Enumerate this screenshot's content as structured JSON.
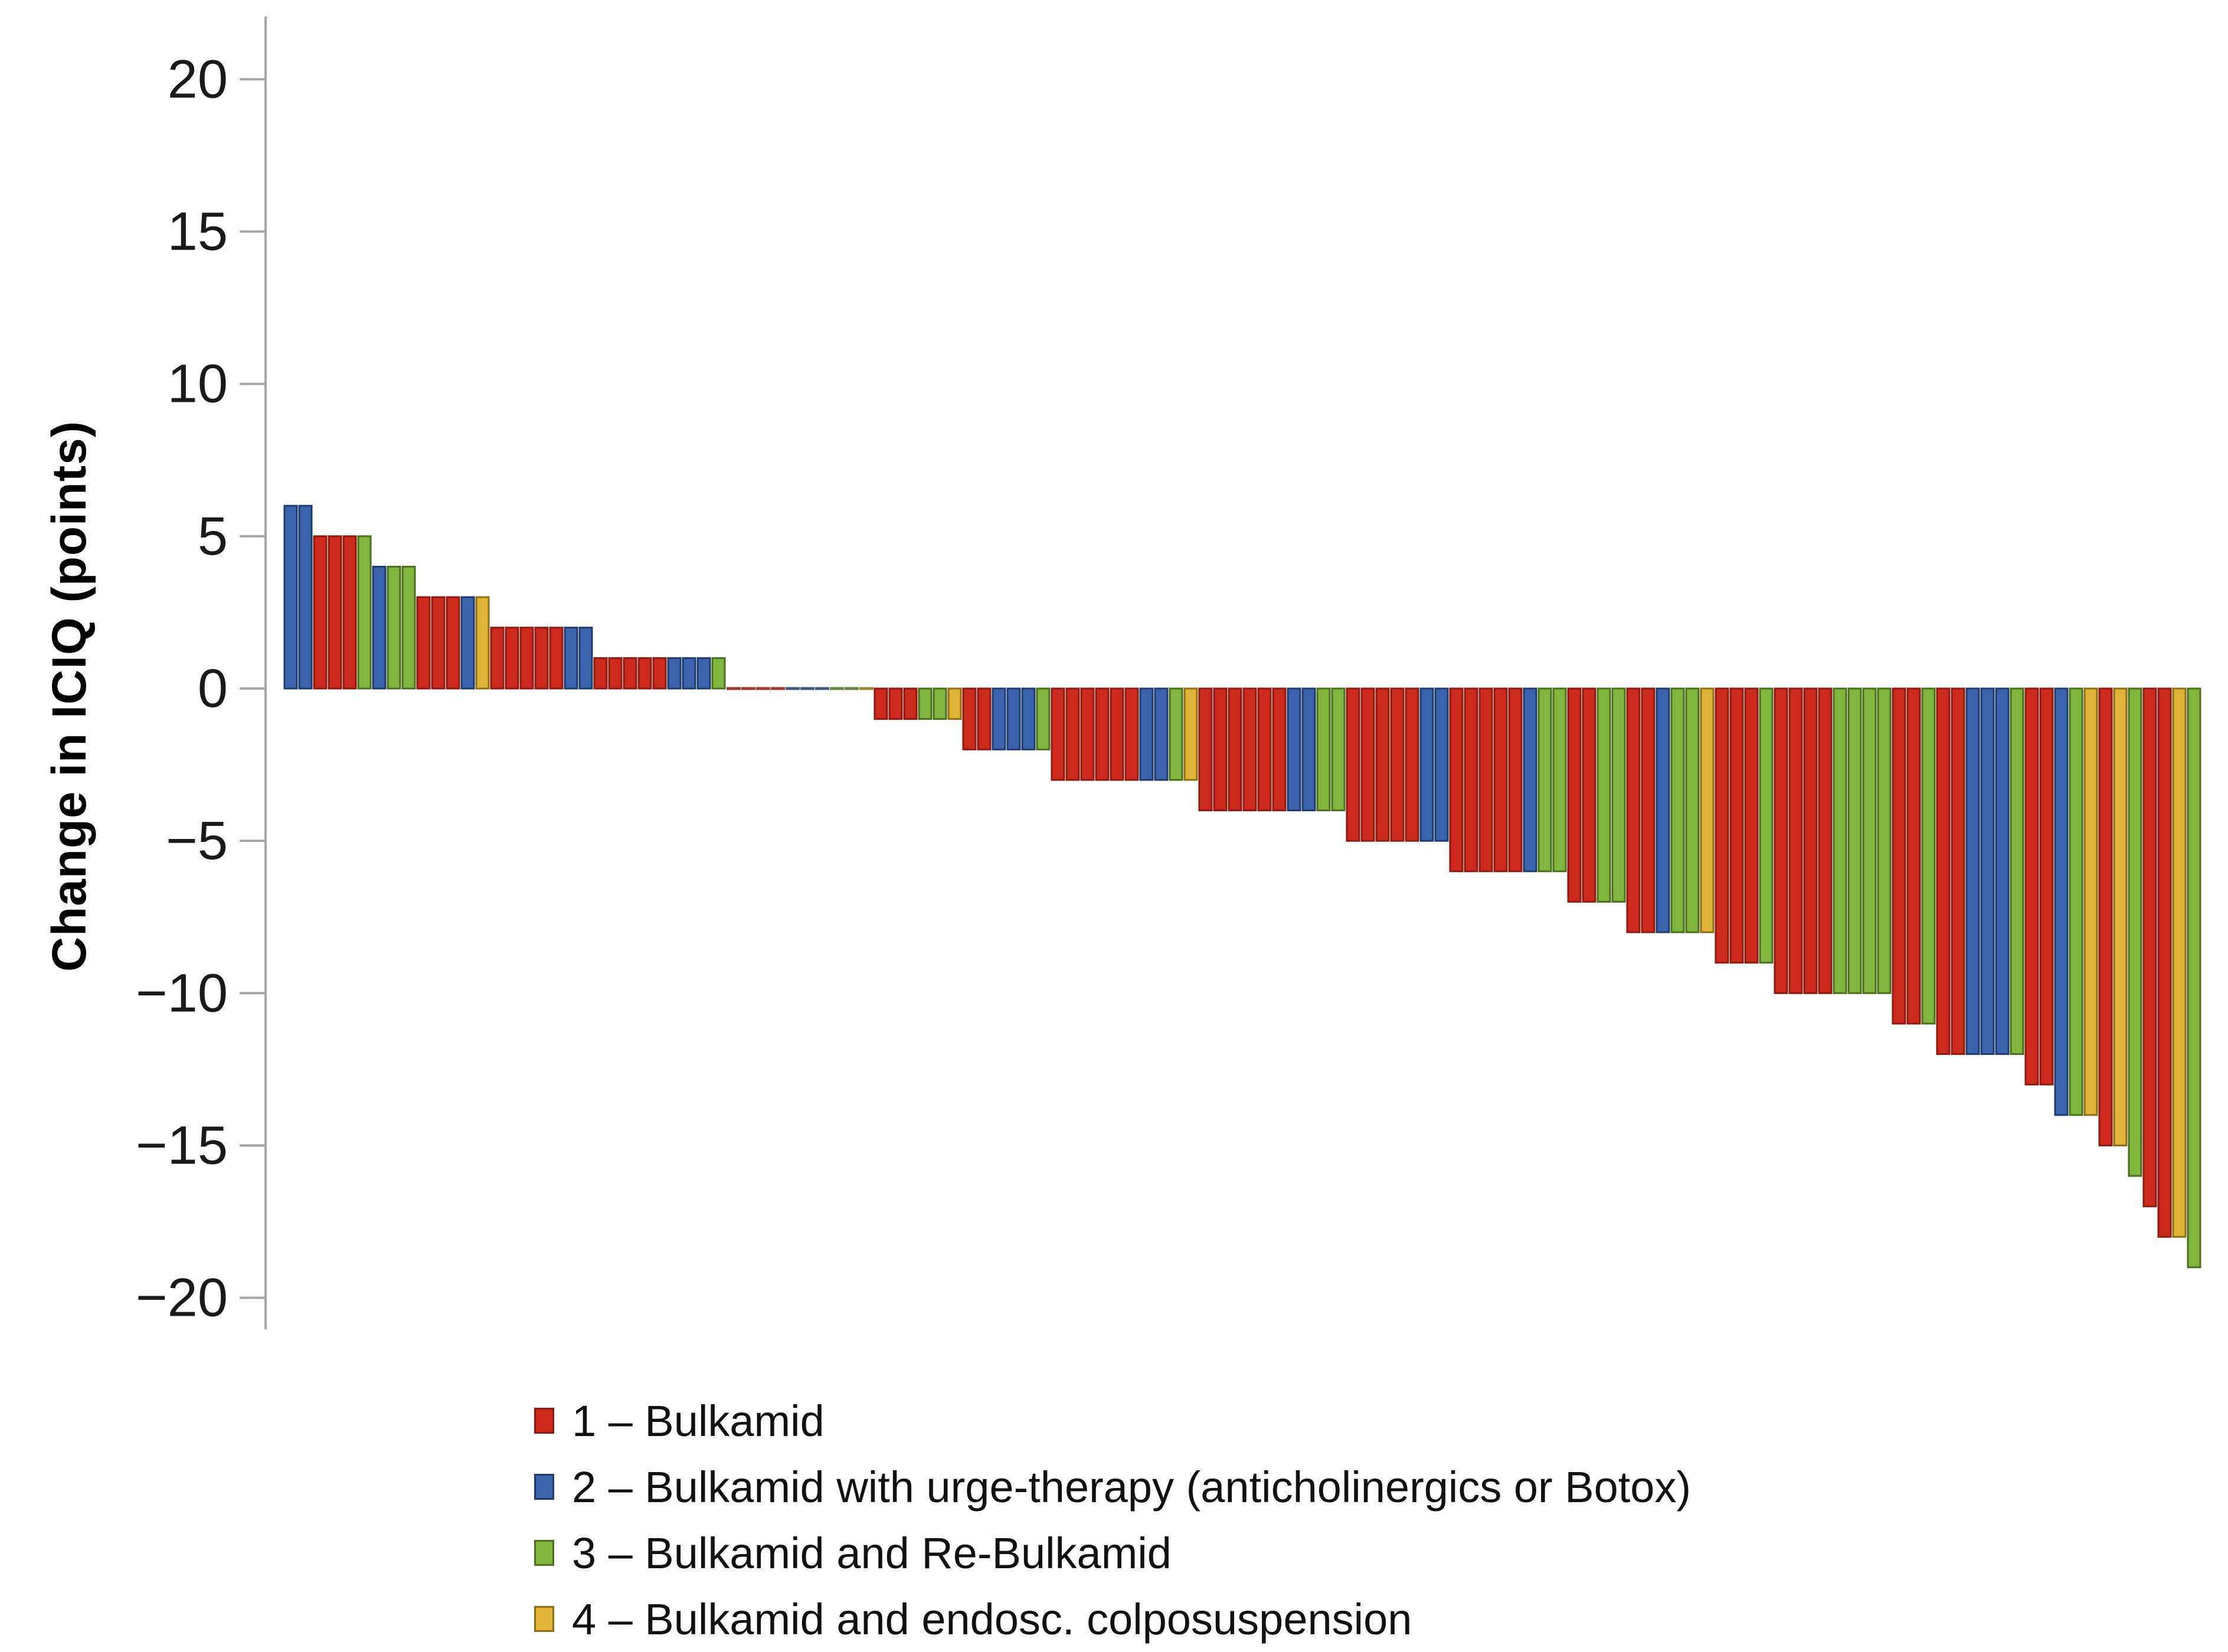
{
  "chart_data": {
    "type": "bar",
    "subtype": "waterfall-per-patient",
    "title": "",
    "xlabel": "",
    "ylabel": "Change in ICIQ (points)",
    "ylim": [
      -21.5,
      22
    ],
    "grid": false,
    "legend_position": "bottom-left",
    "axis_color": "#a6a6a6",
    "y_ticks": [
      {
        "v": 20,
        "label": "20"
      },
      {
        "v": 15,
        "label": "15"
      },
      {
        "v": 10,
        "label": "10"
      },
      {
        "v": 5,
        "label": "5"
      },
      {
        "v": 0,
        "label": "0"
      },
      {
        "v": -5,
        "label": "−5"
      },
      {
        "v": -10,
        "label": "−10"
      },
      {
        "v": -15,
        "label": "−15"
      },
      {
        "v": -20,
        "label": "−20"
      }
    ],
    "groups": [
      {
        "id": 1,
        "label": "1 – Bulkamid",
        "color": "#cb2a1d",
        "border": "#8e1b12"
      },
      {
        "id": 2,
        "label": "2 – Bulkamid with urge-therapy (anticholinergics or Botox)",
        "color": "#3c64ae",
        "border": "#1f3b6c"
      },
      {
        "id": 3,
        "label": "3 – Bulkamid and Re-Bulkamid",
        "color": "#80b63e",
        "border": "#4c6e1f"
      },
      {
        "id": 4,
        "label": "4 – Bulkamid and endosc. colposuspension",
        "color": "#dfb335",
        "border": "#8c6e14"
      }
    ],
    "bars": [
      [
        2,
        6
      ],
      [
        2,
        6
      ],
      [
        1,
        5
      ],
      [
        1,
        5
      ],
      [
        1,
        5
      ],
      [
        3,
        5
      ],
      [
        2,
        4
      ],
      [
        3,
        4
      ],
      [
        3,
        4
      ],
      [
        1,
        3
      ],
      [
        1,
        3
      ],
      [
        1,
        3
      ],
      [
        2,
        3
      ],
      [
        4,
        3
      ],
      [
        1,
        2
      ],
      [
        1,
        2
      ],
      [
        1,
        2
      ],
      [
        1,
        2
      ],
      [
        1,
        2
      ],
      [
        2,
        2
      ],
      [
        2,
        2
      ],
      [
        1,
        1
      ],
      [
        1,
        1
      ],
      [
        1,
        1
      ],
      [
        1,
        1
      ],
      [
        1,
        1
      ],
      [
        2,
        1
      ],
      [
        2,
        1
      ],
      [
        2,
        1
      ],
      [
        3,
        1
      ],
      [
        1,
        0
      ],
      [
        1,
        0
      ],
      [
        1,
        0
      ],
      [
        1,
        0
      ],
      [
        2,
        0
      ],
      [
        2,
        0
      ],
      [
        2,
        0
      ],
      [
        3,
        0
      ],
      [
        3,
        0
      ],
      [
        4,
        0
      ],
      [
        1,
        -1
      ],
      [
        1,
        -1
      ],
      [
        1,
        -1
      ],
      [
        3,
        -1
      ],
      [
        3,
        -1
      ],
      [
        4,
        -1
      ],
      [
        1,
        -2
      ],
      [
        1,
        -2
      ],
      [
        2,
        -2
      ],
      [
        2,
        -2
      ],
      [
        2,
        -2
      ],
      [
        3,
        -2
      ],
      [
        1,
        -3
      ],
      [
        1,
        -3
      ],
      [
        1,
        -3
      ],
      [
        1,
        -3
      ],
      [
        1,
        -3
      ],
      [
        1,
        -3
      ],
      [
        2,
        -3
      ],
      [
        2,
        -3
      ],
      [
        3,
        -3
      ],
      [
        4,
        -3
      ],
      [
        1,
        -4
      ],
      [
        1,
        -4
      ],
      [
        1,
        -4
      ],
      [
        1,
        -4
      ],
      [
        1,
        -4
      ],
      [
        1,
        -4
      ],
      [
        2,
        -4
      ],
      [
        2,
        -4
      ],
      [
        3,
        -4
      ],
      [
        3,
        -4
      ],
      [
        1,
        -5
      ],
      [
        1,
        -5
      ],
      [
        1,
        -5
      ],
      [
        1,
        -5
      ],
      [
        1,
        -5
      ],
      [
        2,
        -5
      ],
      [
        2,
        -5
      ],
      [
        1,
        -6
      ],
      [
        1,
        -6
      ],
      [
        1,
        -6
      ],
      [
        1,
        -6
      ],
      [
        1,
        -6
      ],
      [
        2,
        -6
      ],
      [
        3,
        -6
      ],
      [
        3,
        -6
      ],
      [
        1,
        -7
      ],
      [
        1,
        -7
      ],
      [
        3,
        -7
      ],
      [
        3,
        -7
      ],
      [
        1,
        -8
      ],
      [
        1,
        -8
      ],
      [
        2,
        -8
      ],
      [
        3,
        -8
      ],
      [
        3,
        -8
      ],
      [
        4,
        -8
      ],
      [
        1,
        -9
      ],
      [
        1,
        -9
      ],
      [
        1,
        -9
      ],
      [
        3,
        -9
      ],
      [
        1,
        -10
      ],
      [
        1,
        -10
      ],
      [
        1,
        -10
      ],
      [
        1,
        -10
      ],
      [
        3,
        -10
      ],
      [
        3,
        -10
      ],
      [
        3,
        -10
      ],
      [
        3,
        -10
      ],
      [
        1,
        -11
      ],
      [
        1,
        -11
      ],
      [
        3,
        -11
      ],
      [
        1,
        -12
      ],
      [
        1,
        -12
      ],
      [
        2,
        -12
      ],
      [
        2,
        -12
      ],
      [
        2,
        -12
      ],
      [
        3,
        -12
      ],
      [
        1,
        -13
      ],
      [
        1,
        -13
      ],
      [
        2,
        -14
      ],
      [
        3,
        -14
      ],
      [
        4,
        -14
      ],
      [
        1,
        -15
      ],
      [
        4,
        -15
      ],
      [
        3,
        -16
      ],
      [
        1,
        -17
      ],
      [
        1,
        -18
      ],
      [
        4,
        -18
      ],
      [
        3,
        -19
      ]
    ]
  }
}
